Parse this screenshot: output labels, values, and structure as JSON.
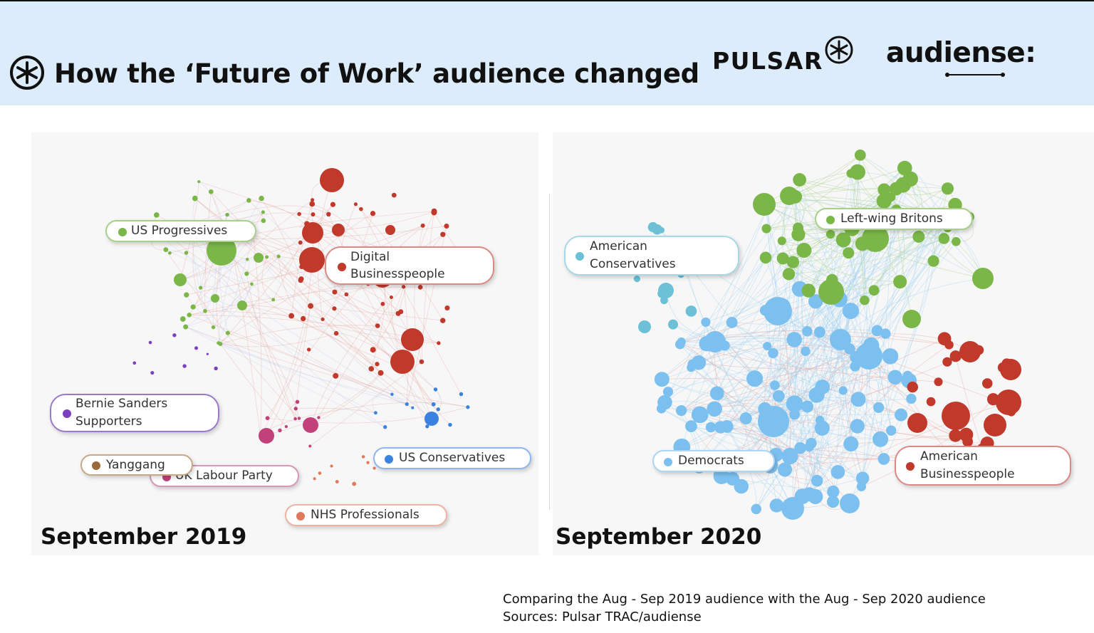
{
  "header": {
    "title": "How the ‘Future of Work’ audience changed",
    "brand_pulsar": "PULSAR",
    "brand_audiense": "audiense:"
  },
  "panels": {
    "left": {
      "caption": "September 2019",
      "labels": [
        {
          "id": "us-progressives",
          "text": "US Progressives",
          "color": "#7ab648"
        },
        {
          "id": "digital-businesspeople",
          "line1": "Digital",
          "line2": "Businesspeople",
          "color": "#c0392b"
        },
        {
          "id": "bernie-sanders-supporters",
          "line1": "Bernie Sanders",
          "line2": "Supporters",
          "color": "#7b3fbf"
        },
        {
          "id": "yanggang",
          "text": "Yanggang",
          "color": "#9a6b3a"
        },
        {
          "id": "uk-labour-party",
          "text": "UK Labour Party",
          "color": "#c2417a"
        },
        {
          "id": "us-conservatives",
          "text": "US Conservatives",
          "color": "#3b82e0"
        },
        {
          "id": "nhs-professionals",
          "text": "NHS Professionals",
          "color": "#e07a5f"
        }
      ]
    },
    "right": {
      "caption": "September 2020",
      "labels": [
        {
          "id": "left-wing-britons",
          "text": "Left-wing Britons",
          "color": "#7ab648"
        },
        {
          "id": "american-conservatives",
          "line1": "American",
          "line2": "Conservatives",
          "color": "#6cc1d6"
        },
        {
          "id": "democrats",
          "text": "Democrats",
          "color": "#7cc0ef"
        },
        {
          "id": "american-businesspeople",
          "line1": "American",
          "line2": "Businesspeople",
          "color": "#c0392b"
        }
      ]
    }
  },
  "footer": {
    "line1": "Comparing the Aug - Sep 2019 audience with the Aug - Sep 2020 audience",
    "line2": "Sources: Pulsar TRAC/audiense"
  },
  "colors": {
    "header_bg": "#dcecfb",
    "green": "#7ab648",
    "red": "#c0392b",
    "blue": "#7cc0ef",
    "purple": "#7b3fbf",
    "pink": "#c2417a",
    "teal": "#6cc1d6"
  }
}
